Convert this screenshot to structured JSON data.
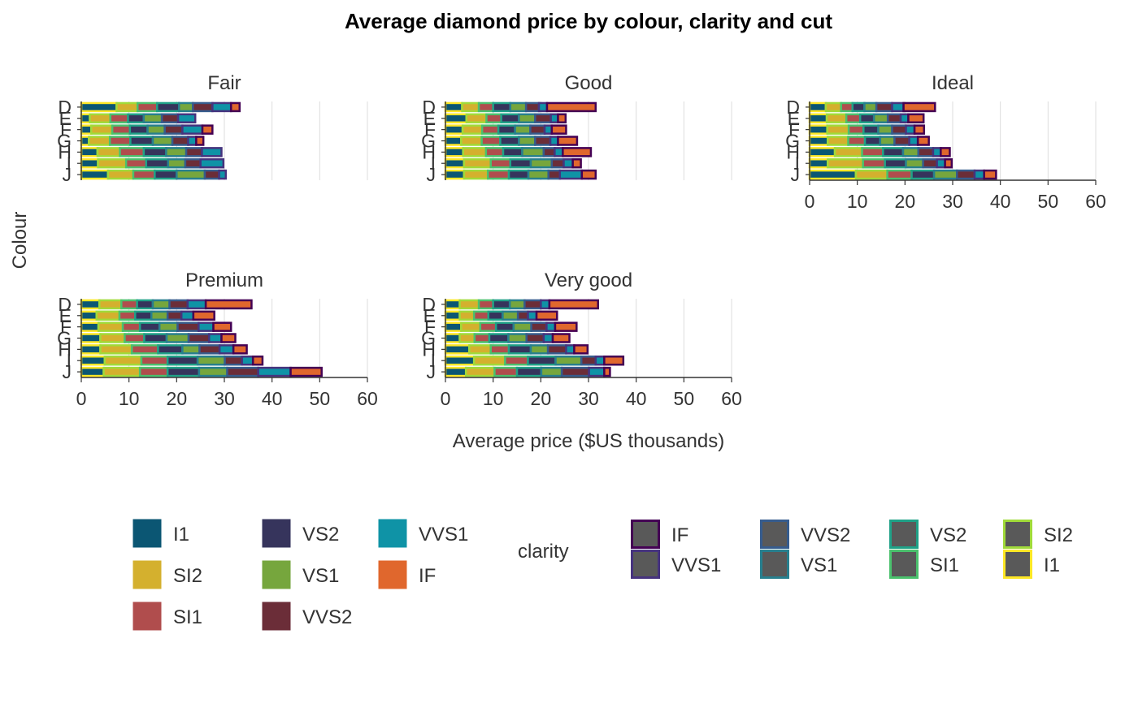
{
  "chart_data": {
    "type": "bar",
    "orientation": "horizontal",
    "stacked": true,
    "title": "Average diamond price by colour, clarity and cut",
    "xlabel": "Average price ($US thousands)",
    "ylabel": "Colour",
    "xlim": [
      0,
      60
    ],
    "x_ticks": [
      "0",
      "10",
      "20",
      "30",
      "40",
      "50",
      "60"
    ],
    "categories": [
      "D",
      "E",
      "F",
      "G",
      "H",
      "I",
      "J"
    ],
    "stack_order": [
      "I1",
      "SI2",
      "SI1",
      "VS2",
      "VS1",
      "VVS2",
      "VVS1",
      "IF"
    ],
    "grid": "vertical major",
    "facets": [
      {
        "name": "Fair",
        "series": [
          {
            "name": "I1",
            "values": [
              7.4,
              1.8,
              2.1,
              1.6,
              3.4,
              3.5,
              5.6
            ]
          },
          {
            "name": "SI2",
            "values": [
              4.4,
              4.3,
              4.4,
              4.4,
              4.7,
              5.9,
              5.3
            ]
          },
          {
            "name": "SI1",
            "values": [
              4.1,
              3.7,
              3.7,
              4.3,
              5.0,
              4.2,
              4.5
            ]
          },
          {
            "name": "VS2",
            "values": [
              4.6,
              3.3,
              3.7,
              4.7,
              4.7,
              4.6,
              4.6
            ]
          },
          {
            "name": "VS1",
            "values": [
              2.9,
              3.8,
              3.6,
              4.1,
              4.2,
              3.6,
              5.9
            ]
          },
          {
            "name": "VVS2",
            "values": [
              4.1,
              3.4,
              3.7,
              3.3,
              3.3,
              3.2,
              3.0
            ]
          },
          {
            "name": "VVS1",
            "values": [
              3.9,
              3.6,
              4.2,
              1.7,
              4.1,
              4.8,
              1.4
            ]
          },
          {
            "name": "IF",
            "values": [
              1.8,
              0.0,
              2.1,
              1.5,
              0.0,
              0.0,
              0.0
            ]
          }
        ]
      },
      {
        "name": "Good",
        "series": [
          {
            "name": "I1",
            "values": [
              3.5,
              4.4,
              3.6,
              3.3,
              3.7,
              3.9,
              3.9
            ]
          },
          {
            "name": "SI2",
            "values": [
              3.5,
              4.2,
              4.1,
              4.3,
              4.8,
              5.6,
              5.0
            ]
          },
          {
            "name": "SI1",
            "values": [
              3.0,
              3.1,
              3.4,
              3.9,
              3.6,
              4.1,
              4.4
            ]
          },
          {
            "name": "VS2",
            "values": [
              3.6,
              3.7,
              3.5,
              3.9,
              4.0,
              4.3,
              4.1
            ]
          },
          {
            "name": "VS1",
            "values": [
              3.3,
              3.4,
              3.2,
              3.4,
              4.5,
              4.4,
              4.2
            ]
          },
          {
            "name": "VVS2",
            "values": [
              2.7,
              3.3,
              3.0,
              3.2,
              2.3,
              2.5,
              2.4
            ]
          },
          {
            "name": "VVS1",
            "values": [
              1.7,
              1.5,
              1.5,
              1.6,
              1.7,
              1.9,
              4.6
            ]
          },
          {
            "name": "IF",
            "values": [
              10.2,
              1.6,
              3.0,
              4.0,
              5.9,
              1.7,
              2.9
            ]
          }
        ]
      },
      {
        "name": "Ideal",
        "series": [
          {
            "name": "I1",
            "values": [
              3.4,
              3.6,
              3.7,
              3.8,
              5.3,
              3.8,
              9.7
            ]
          },
          {
            "name": "SI2",
            "values": [
              3.2,
              4.1,
              4.5,
              4.3,
              5.7,
              7.4,
              6.6
            ]
          },
          {
            "name": "SI1",
            "values": [
              2.4,
              2.9,
              3.1,
              3.5,
              4.4,
              4.6,
              5.1
            ]
          },
          {
            "name": "VS2",
            "values": [
              2.5,
              2.9,
              3.1,
              3.2,
              4.2,
              4.4,
              4.7
            ]
          },
          {
            "name": "VS1",
            "values": [
              2.5,
              2.9,
              2.9,
              3.0,
              3.2,
              3.6,
              4.8
            ]
          },
          {
            "name": "VVS2",
            "values": [
              3.3,
              2.7,
              2.9,
              3.1,
              3.1,
              2.9,
              3.7
            ]
          },
          {
            "name": "VVS1",
            "values": [
              2.4,
              1.6,
              1.8,
              1.8,
              1.6,
              1.7,
              2.0
            ]
          },
          {
            "name": "IF",
            "values": [
              6.6,
              3.2,
              2.0,
              2.3,
              1.9,
              1.4,
              2.5
            ]
          }
        ]
      },
      {
        "name": "Premium",
        "series": [
          {
            "name": "I1",
            "values": [
              3.8,
              3.2,
              3.6,
              4.0,
              4.0,
              4.9,
              4.7
            ]
          },
          {
            "name": "SI2",
            "values": [
              4.6,
              4.8,
              5.1,
              5.1,
              6.6,
              7.7,
              7.6
            ]
          },
          {
            "name": "SI1",
            "values": [
              3.3,
              3.3,
              3.6,
              4.1,
              5.5,
              5.5,
              5.8
            ]
          },
          {
            "name": "VS2",
            "values": [
              3.3,
              3.4,
              4.1,
              4.7,
              5.1,
              6.3,
              6.6
            ]
          },
          {
            "name": "VS1",
            "values": [
              3.5,
              3.4,
              3.8,
              4.6,
              3.6,
              5.7,
              5.9
            ]
          },
          {
            "name": "VVS2",
            "values": [
              3.8,
              2.9,
              4.4,
              4.3,
              4.2,
              3.6,
              6.5
            ]
          },
          {
            "name": "VVS1",
            "values": [
              3.8,
              2.5,
              3.1,
              2.6,
              2.9,
              2.3,
              6.8
            ]
          },
          {
            "name": "IF",
            "values": [
              9.6,
              4.4,
              3.7,
              2.9,
              2.8,
              2.0,
              6.5
            ]
          }
        ]
      },
      {
        "name": "Very good",
        "series": [
          {
            "name": "I1",
            "values": [
              3.0,
              3.0,
              3.3,
              3.0,
              5.0,
              6.0,
              4.3
            ]
          },
          {
            "name": "SI2",
            "values": [
              4.0,
              3.0,
              4.0,
              3.1,
              4.5,
              6.5,
              6.0
            ]
          },
          {
            "name": "SI1",
            "values": [
              3.0,
              3.0,
              3.3,
              3.1,
              3.8,
              4.8,
              4.7
            ]
          },
          {
            "name": "VS2",
            "values": [
              3.5,
              3.0,
              3.7,
              4.0,
              4.6,
              5.8,
              5.1
            ]
          },
          {
            "name": "VS1",
            "values": [
              3.1,
              3.2,
              3.7,
              3.8,
              3.6,
              5.4,
              4.3
            ]
          },
          {
            "name": "VVS2",
            "values": [
              3.4,
              2.1,
              3.2,
              3.6,
              3.8,
              3.0,
              5.7
            ]
          },
          {
            "name": "VVS1",
            "values": [
              1.8,
              1.8,
              1.8,
              1.9,
              1.7,
              1.8,
              3.2
            ]
          },
          {
            "name": "IF",
            "values": [
              10.2,
              4.3,
              4.5,
              3.5,
              2.8,
              4.0,
              1.2
            ]
          }
        ]
      }
    ],
    "legends": [
      {
        "title": "",
        "kind": "fill",
        "items": [
          {
            "label": "I1",
            "color": "#0b5673"
          },
          {
            "label": "SI2",
            "color": "#d4b02e"
          },
          {
            "label": "SI1",
            "color": "#b04d4d"
          },
          {
            "label": "VS2",
            "color": "#36345c"
          },
          {
            "label": "VS1",
            "color": "#76a63d"
          },
          {
            "label": "VVS2",
            "color": "#6b2d38"
          },
          {
            "label": "VVS1",
            "color": "#0f93a6"
          },
          {
            "label": "IF",
            "color": "#e0672d"
          }
        ]
      },
      {
        "title": "clarity",
        "kind": "outline",
        "fill": "#595959",
        "items": [
          {
            "label": "IF",
            "color": "#440154"
          },
          {
            "label": "VVS1",
            "color": "#46337e"
          },
          {
            "label": "VVS2",
            "color": "#365c8d"
          },
          {
            "label": "VS1",
            "color": "#277f8e"
          },
          {
            "label": "VS2",
            "color": "#1fa187"
          },
          {
            "label": "SI1",
            "color": "#4ac16d"
          },
          {
            "label": "SI2",
            "color": "#a0da39"
          },
          {
            "label": "I1",
            "color": "#fde725"
          }
        ]
      }
    ]
  }
}
